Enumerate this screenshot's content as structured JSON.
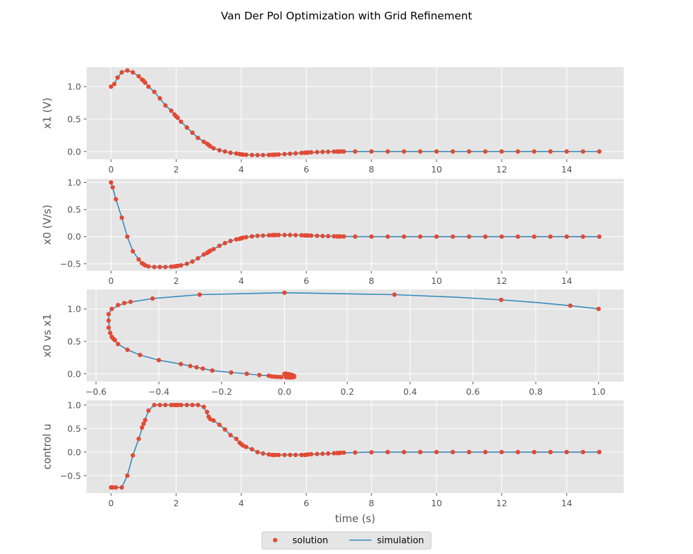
{
  "figure": {
    "title": "Van Der Pol Optimization with Grid Refinement",
    "legend": {
      "placement": "bottom-center",
      "entries": [
        {
          "label": "solution",
          "color": "#e24a33",
          "marker": "circle"
        },
        {
          "label": "simulation",
          "color": "#348abd",
          "marker": "line"
        }
      ]
    },
    "style": {
      "background": "#e5e5e5",
      "grid": true,
      "grid_color": "#ffffff"
    }
  },
  "chart_data": [
    {
      "type": "line",
      "xlabel": "",
      "ylabel": "x1 (V)",
      "xlim": [
        -0.75,
        15.75
      ],
      "ylim": [
        -0.12,
        1.3
      ],
      "xticks": [
        0,
        2,
        4,
        6,
        8,
        10,
        12,
        14
      ],
      "xtick_labels": [
        "0",
        "2",
        "4",
        "6",
        "8",
        "10",
        "12",
        "14"
      ],
      "yticks": [
        0.0,
        0.5,
        1.0
      ],
      "ytick_labels": [
        "0.0",
        "0.5",
        "1.0"
      ],
      "solution": {
        "x": [
          0,
          0.1,
          0.2,
          0.33,
          0.5,
          0.67,
          0.85,
          0.95,
          1.0,
          1.05,
          1.15,
          1.33,
          1.5,
          1.67,
          1.85,
          1.95,
          2.0,
          2.05,
          2.15,
          2.33,
          2.5,
          2.67,
          2.85,
          2.95,
          3.0,
          3.05,
          3.15,
          3.33,
          3.5,
          3.67,
          3.85,
          3.95,
          4.0,
          4.05,
          4.15,
          4.33,
          4.5,
          4.67,
          4.85,
          4.95,
          5.0,
          5.05,
          5.15,
          5.33,
          5.5,
          5.67,
          5.85,
          5.95,
          6.0,
          6.05,
          6.15,
          6.33,
          6.5,
          6.67,
          6.85,
          6.95,
          7.0,
          7.05,
          7.15,
          7.5,
          8.0,
          8.5,
          9.0,
          9.5,
          10.0,
          10.5,
          11.0,
          11.5,
          12.0,
          12.5,
          13.0,
          13.5,
          14.0,
          14.5,
          15.0
        ],
        "y": [
          1.0,
          1.04,
          1.14,
          1.22,
          1.25,
          1.22,
          1.16,
          1.11,
          1.09,
          1.06,
          1.0,
          0.92,
          0.82,
          0.71,
          0.63,
          0.57,
          0.54,
          0.52,
          0.46,
          0.37,
          0.29,
          0.21,
          0.15,
          0.12,
          0.1,
          0.08,
          0.05,
          0.02,
          0.0,
          -0.02,
          -0.03,
          -0.04,
          -0.045,
          -0.048,
          -0.05,
          -0.055,
          -0.056,
          -0.055,
          -0.053,
          -0.051,
          -0.05,
          -0.049,
          -0.046,
          -0.04,
          -0.034,
          -0.028,
          -0.022,
          -0.019,
          -0.018,
          -0.016,
          -0.013,
          -0.009,
          -0.006,
          -0.004,
          -0.002,
          -0.001,
          -0.001,
          0.0,
          0.0,
          0.0,
          0.0,
          0.0,
          0.0,
          0.0,
          0.0,
          0.0,
          0.0,
          0.0,
          0.0,
          0.0,
          0.0,
          0.0,
          0.0,
          0.0,
          0.0
        ]
      },
      "simulation": {
        "x": [
          0,
          0.1,
          0.2,
          0.33,
          0.5,
          0.67,
          0.85,
          1.0,
          1.15,
          1.33,
          1.5,
          1.67,
          1.85,
          2.0,
          2.15,
          2.33,
          2.5,
          2.67,
          2.85,
          3.0,
          3.15,
          3.33,
          3.5,
          3.67,
          3.85,
          4.0,
          4.15,
          4.33,
          4.5,
          4.67,
          4.85,
          5.0,
          5.33,
          5.67,
          6.0,
          6.5,
          7.0,
          7.5,
          8.0,
          9.0,
          10.0,
          11.0,
          12.0,
          13.0,
          14.0,
          15.0
        ],
        "y": [
          1.0,
          1.04,
          1.14,
          1.22,
          1.25,
          1.22,
          1.16,
          1.09,
          1.0,
          0.92,
          0.82,
          0.71,
          0.63,
          0.54,
          0.46,
          0.37,
          0.29,
          0.21,
          0.15,
          0.1,
          0.05,
          0.02,
          0.0,
          -0.02,
          -0.03,
          -0.045,
          -0.05,
          -0.055,
          -0.056,
          -0.055,
          -0.053,
          -0.05,
          -0.04,
          -0.028,
          -0.018,
          -0.006,
          -0.001,
          0.0,
          0.0,
          0.0,
          0.0,
          0.0,
          0.0,
          0.0,
          0.0,
          0.0
        ]
      }
    },
    {
      "type": "line",
      "xlabel": "",
      "ylabel": "x0 (V/s)",
      "xlim": [
        -0.75,
        15.75
      ],
      "ylim": [
        -0.63,
        1.07
      ],
      "xticks": [
        0,
        2,
        4,
        6,
        8,
        10,
        12,
        14
      ],
      "xtick_labels": [
        "0",
        "2",
        "4",
        "6",
        "8",
        "10",
        "12",
        "14"
      ],
      "yticks": [
        -0.5,
        0.0,
        0.5,
        1.0
      ],
      "ytick_labels": [
        "−0.5",
        "0.0",
        "0.5",
        "1.0"
      ],
      "solution": {
        "x": [
          0,
          0.05,
          0.15,
          0.33,
          0.5,
          0.67,
          0.85,
          0.95,
          1.0,
          1.05,
          1.15,
          1.33,
          1.5,
          1.67,
          1.85,
          1.95,
          2.0,
          2.05,
          2.15,
          2.33,
          2.5,
          2.67,
          2.85,
          2.95,
          3.0,
          3.05,
          3.15,
          3.33,
          3.5,
          3.67,
          3.85,
          3.95,
          4.0,
          4.05,
          4.15,
          4.33,
          4.5,
          4.67,
          4.85,
          4.95,
          5.0,
          5.05,
          5.15,
          5.33,
          5.5,
          5.67,
          5.85,
          5.95,
          6.0,
          6.05,
          6.15,
          6.33,
          6.5,
          6.67,
          6.85,
          6.95,
          7.0,
          7.05,
          7.15,
          7.5,
          8.0,
          8.5,
          9.0,
          9.5,
          10.0,
          10.5,
          11.0,
          11.5,
          12.0,
          12.5,
          13.0,
          13.5,
          14.0,
          14.5,
          15.0
        ],
        "y": [
          1.0,
          0.91,
          0.69,
          0.35,
          0.0,
          -0.27,
          -0.42,
          -0.49,
          -0.51,
          -0.53,
          -0.55,
          -0.56,
          -0.56,
          -0.56,
          -0.555,
          -0.55,
          -0.545,
          -0.54,
          -0.53,
          -0.5,
          -0.46,
          -0.4,
          -0.33,
          -0.3,
          -0.28,
          -0.26,
          -0.23,
          -0.17,
          -0.12,
          -0.08,
          -0.05,
          -0.04,
          -0.03,
          -0.02,
          -0.01,
          0.005,
          0.015,
          0.02,
          0.025,
          0.028,
          0.029,
          0.03,
          0.03,
          0.03,
          0.03,
          0.028,
          0.025,
          0.023,
          0.022,
          0.021,
          0.019,
          0.015,
          0.012,
          0.009,
          0.006,
          0.005,
          0.004,
          0.004,
          0.003,
          0.001,
          0.0,
          0.0,
          0.0,
          0.0,
          0.0,
          0.0,
          0.0,
          0.0,
          0.0,
          0.0,
          0.0,
          0.0,
          0.0,
          0.0,
          0.0
        ]
      },
      "simulation": {
        "x": [
          0,
          0.05,
          0.15,
          0.33,
          0.5,
          0.67,
          0.85,
          1.0,
          1.15,
          1.33,
          1.5,
          1.67,
          1.85,
          2.0,
          2.15,
          2.33,
          2.5,
          2.67,
          2.85,
          3.0,
          3.15,
          3.33,
          3.5,
          3.67,
          3.85,
          4.0,
          4.15,
          4.33,
          4.5,
          4.67,
          4.85,
          5.0,
          5.33,
          5.67,
          6.0,
          6.5,
          7.0,
          7.5,
          8.0,
          9.0,
          10.0,
          11.0,
          12.0,
          13.0,
          14.0,
          15.0
        ],
        "y": [
          1.0,
          0.91,
          0.69,
          0.35,
          0.0,
          -0.27,
          -0.42,
          -0.51,
          -0.55,
          -0.56,
          -0.56,
          -0.56,
          -0.555,
          -0.545,
          -0.53,
          -0.5,
          -0.46,
          -0.4,
          -0.33,
          -0.28,
          -0.23,
          -0.17,
          -0.12,
          -0.08,
          -0.05,
          -0.03,
          -0.01,
          0.005,
          0.015,
          0.02,
          0.025,
          0.029,
          0.03,
          0.028,
          0.022,
          0.012,
          0.004,
          0.001,
          0.0,
          0.0,
          0.0,
          0.0,
          0.0,
          0.0,
          0.0,
          0.0
        ]
      }
    },
    {
      "type": "line",
      "xlabel": "",
      "ylabel": "x0 vs x1",
      "xlim": [
        -0.63,
        1.08
      ],
      "ylim": [
        -0.12,
        1.3
      ],
      "xticks": [
        -0.6,
        -0.4,
        -0.2,
        0.0,
        0.2,
        0.4,
        0.6,
        0.8,
        1.0
      ],
      "xtick_labels": [
        "−0.6",
        "−0.4",
        "−0.2",
        "0.0",
        "0.2",
        "0.4",
        "0.6",
        "0.8",
        "1.0"
      ],
      "yticks": [
        0.0,
        0.5,
        1.0
      ],
      "ytick_labels": [
        "0.0",
        "0.5",
        "1.0"
      ],
      "solution": {
        "x": [
          1.0,
          0.91,
          0.69,
          0.35,
          0.0,
          -0.27,
          -0.42,
          -0.49,
          -0.51,
          -0.53,
          -0.55,
          -0.56,
          -0.56,
          -0.56,
          -0.555,
          -0.55,
          -0.545,
          -0.54,
          -0.53,
          -0.5,
          -0.46,
          -0.4,
          -0.33,
          -0.3,
          -0.28,
          -0.26,
          -0.23,
          -0.17,
          -0.12,
          -0.08,
          -0.05,
          -0.04,
          -0.03,
          -0.02,
          -0.01,
          0.005,
          0.015,
          0.02,
          0.025,
          0.028,
          0.029,
          0.03,
          0.03,
          0.03,
          0.03,
          0.028,
          0.025,
          0.023,
          0.022,
          0.021,
          0.019,
          0.015,
          0.012,
          0.009,
          0.006,
          0.005,
          0.004,
          0.004,
          0.003,
          0.001,
          0.0
        ],
        "y": [
          1.0,
          1.05,
          1.14,
          1.22,
          1.25,
          1.22,
          1.16,
          1.11,
          1.09,
          1.06,
          1.0,
          0.92,
          0.82,
          0.71,
          0.63,
          0.57,
          0.54,
          0.52,
          0.46,
          0.37,
          0.29,
          0.21,
          0.15,
          0.12,
          0.1,
          0.08,
          0.05,
          0.02,
          0.0,
          -0.02,
          -0.03,
          -0.04,
          -0.045,
          -0.048,
          -0.05,
          -0.055,
          -0.056,
          -0.055,
          -0.053,
          -0.051,
          -0.05,
          -0.049,
          -0.046,
          -0.04,
          -0.034,
          -0.028,
          -0.022,
          -0.019,
          -0.018,
          -0.016,
          -0.013,
          -0.009,
          -0.006,
          -0.004,
          -0.002,
          -0.001,
          -0.001,
          0.0,
          0.0,
          0.0,
          0.0
        ]
      },
      "simulation": {
        "x": [
          1.0,
          0.91,
          0.8,
          0.69,
          0.55,
          0.35,
          0.0,
          -0.27,
          -0.42,
          -0.51,
          -0.55,
          -0.56,
          -0.56,
          -0.555,
          -0.545,
          -0.53,
          -0.5,
          -0.46,
          -0.4,
          -0.33,
          -0.28,
          -0.23,
          -0.17,
          -0.12,
          -0.08,
          -0.05,
          -0.03,
          -0.01,
          0.005,
          0.015,
          0.02,
          0.025,
          0.029,
          0.03,
          0.028,
          0.022,
          0.012,
          0.004,
          0.0
        ],
        "y": [
          1.0,
          1.05,
          1.1,
          1.14,
          1.18,
          1.22,
          1.25,
          1.22,
          1.16,
          1.09,
          1.0,
          0.92,
          0.82,
          0.63,
          0.54,
          0.46,
          0.37,
          0.29,
          0.21,
          0.15,
          0.1,
          0.05,
          0.02,
          0.0,
          -0.02,
          -0.03,
          -0.045,
          -0.05,
          -0.055,
          -0.056,
          -0.055,
          -0.053,
          -0.05,
          -0.04,
          -0.028,
          -0.018,
          -0.006,
          -0.001,
          0.0
        ]
      }
    },
    {
      "type": "line",
      "xlabel": "time (s)",
      "ylabel": "control u",
      "xlim": [
        -0.75,
        15.75
      ],
      "ylim": [
        -0.87,
        1.1
      ],
      "xticks": [
        0,
        2,
        4,
        6,
        8,
        10,
        12,
        14
      ],
      "xtick_labels": [
        "0",
        "2",
        "4",
        "6",
        "8",
        "10",
        "12",
        "14"
      ],
      "yticks": [
        -0.5,
        0.0,
        0.5,
        1.0
      ],
      "ytick_labels": [
        "−0.5",
        "0.0",
        "0.5",
        "1.0"
      ],
      "solution": {
        "x": [
          0,
          0.05,
          0.15,
          0.33,
          0.5,
          0.67,
          0.85,
          0.95,
          1.0,
          1.05,
          1.15,
          1.33,
          1.5,
          1.67,
          1.85,
          1.95,
          2.0,
          2.05,
          2.15,
          2.33,
          2.5,
          2.67,
          2.85,
          2.95,
          3.0,
          3.05,
          3.15,
          3.33,
          3.5,
          3.67,
          3.85,
          3.95,
          4.0,
          4.05,
          4.15,
          4.33,
          4.5,
          4.67,
          4.85,
          4.95,
          5.0,
          5.05,
          5.15,
          5.33,
          5.5,
          5.67,
          5.85,
          5.95,
          6.0,
          6.05,
          6.15,
          6.33,
          6.5,
          6.67,
          6.85,
          6.95,
          7.0,
          7.05,
          7.15,
          7.5,
          8.0,
          8.5,
          9.0,
          9.5,
          10.0,
          10.5,
          11.0,
          11.5,
          12.0,
          12.5,
          13.0,
          13.5,
          14.0,
          14.5,
          15.0
        ],
        "y": [
          -0.75,
          -0.75,
          -0.75,
          -0.75,
          -0.5,
          -0.07,
          0.28,
          0.52,
          0.6,
          0.68,
          0.88,
          1.0,
          1.0,
          1.0,
          1.0,
          1.0,
          1.0,
          1.0,
          1.0,
          1.0,
          1.0,
          1.0,
          0.96,
          0.85,
          0.75,
          0.7,
          0.67,
          0.58,
          0.48,
          0.36,
          0.28,
          0.2,
          0.17,
          0.14,
          0.11,
          0.06,
          0.0,
          -0.03,
          -0.05,
          -0.06,
          -0.06,
          -0.06,
          -0.06,
          -0.06,
          -0.06,
          -0.06,
          -0.06,
          -0.06,
          -0.055,
          -0.05,
          -0.045,
          -0.04,
          -0.035,
          -0.03,
          -0.025,
          -0.02,
          -0.02,
          -0.015,
          -0.012,
          -0.01,
          -0.005,
          0.0,
          0.0,
          0.0,
          0.0,
          0.0,
          0.0,
          0.0,
          0.0,
          0.0,
          0.0,
          0.0,
          0.0,
          0.0,
          0.0
        ]
      },
      "simulation": {
        "x": [
          0,
          0.05,
          0.15,
          0.33,
          0.5,
          0.67,
          0.85,
          1.0,
          1.15,
          1.33,
          1.5,
          2.0,
          2.5,
          2.67,
          2.85,
          3.0,
          3.15,
          3.33,
          3.5,
          3.67,
          3.85,
          4.0,
          4.15,
          4.33,
          4.5,
          4.67,
          4.85,
          5.0,
          5.5,
          6.0,
          6.5,
          7.0,
          7.5,
          8.0,
          9.0,
          10.0,
          11.0,
          12.0,
          13.0,
          14.0,
          15.0
        ],
        "y": [
          -0.75,
          -0.75,
          -0.75,
          -0.75,
          -0.5,
          -0.07,
          0.28,
          0.6,
          0.88,
          1.0,
          1.0,
          1.0,
          1.0,
          1.0,
          0.96,
          0.75,
          0.67,
          0.58,
          0.48,
          0.36,
          0.28,
          0.17,
          0.11,
          0.06,
          0.0,
          -0.03,
          -0.05,
          -0.06,
          -0.06,
          -0.055,
          -0.04,
          -0.02,
          -0.01,
          0.0,
          0.0,
          0.0,
          0.0,
          0.0,
          0.0,
          0.0,
          0.0
        ]
      }
    }
  ]
}
